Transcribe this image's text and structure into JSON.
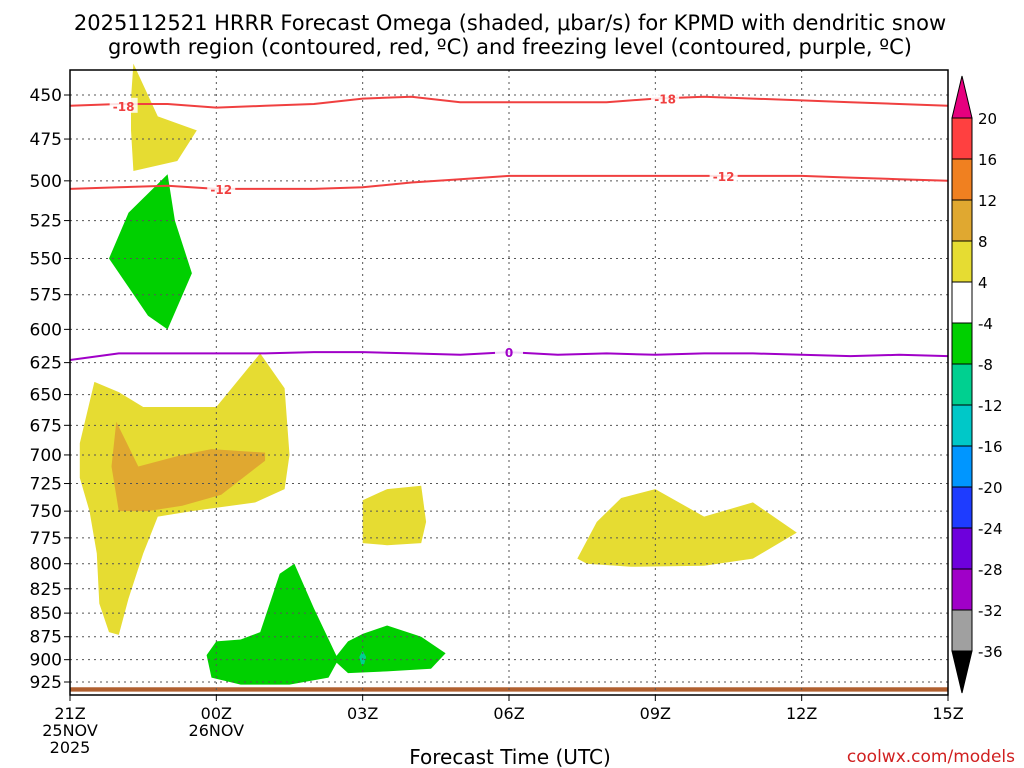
{
  "chart_data": {
    "type": "heatmap",
    "title_line1": "2025112521 HRRR Forecast Omega (shaded, μbar/s) for KPMD with dendritic snow",
    "title_line2": "growth region (contoured, red, ºC) and freezing level (contoured, purple, ºC)",
    "xlabel": "Forecast Time (UTC)",
    "credit": "coolwx.com/models",
    "x_range_hours": [
      0,
      18
    ],
    "x_ticks": [
      {
        "h": 0,
        "label": "21Z",
        "sub1": "25NOV",
        "sub2": "2025"
      },
      {
        "h": 3,
        "label": "00Z",
        "sub1": "26NOV",
        "sub2": ""
      },
      {
        "h": 6,
        "label": "03Z",
        "sub1": "",
        "sub2": ""
      },
      {
        "h": 9,
        "label": "06Z",
        "sub1": "",
        "sub2": ""
      },
      {
        "h": 12,
        "label": "09Z",
        "sub1": "",
        "sub2": ""
      },
      {
        "h": 15,
        "label": "12Z",
        "sub1": "",
        "sub2": ""
      },
      {
        "h": 18,
        "label": "15Z",
        "sub1": "",
        "sub2": ""
      }
    ],
    "y_ticks": [
      "450",
      "475",
      "500",
      "525",
      "550",
      "575",
      "600",
      "625",
      "650",
      "675",
      "700",
      "725",
      "750",
      "775",
      "800",
      "825",
      "850",
      "875",
      "900",
      "925"
    ],
    "y_range_hpa": [
      432,
      940
    ],
    "colorbar": {
      "labels": [
        "20",
        "16",
        "12",
        "8",
        "4",
        "-4",
        "-8",
        "-12",
        "-16",
        "-20",
        "-24",
        "-28",
        "-32",
        "-36"
      ],
      "bins": [
        {
          "lo": 16,
          "hi": 20,
          "color": "#ff4040"
        },
        {
          "lo": 12,
          "hi": 16,
          "color": "#f08020"
        },
        {
          "lo": 8,
          "hi": 12,
          "color": "#e0a830"
        },
        {
          "lo": 4,
          "hi": 8,
          "color": "#e6dc32"
        },
        {
          "lo": -4,
          "hi": 4,
          "color": "#ffffff"
        },
        {
          "lo": -8,
          "hi": -4,
          "color": "#00d000"
        },
        {
          "lo": -12,
          "hi": -8,
          "color": "#00d090"
        },
        {
          "lo": -16,
          "hi": -12,
          "color": "#00c8c8"
        },
        {
          "lo": -20,
          "hi": -16,
          "color": "#0096ff"
        },
        {
          "lo": -24,
          "hi": -20,
          "color": "#1e3cff"
        },
        {
          "lo": -28,
          "hi": -24,
          "color": "#6e00dc"
        },
        {
          "lo": -32,
          "hi": -28,
          "color": "#a000c8"
        },
        {
          "lo": -36,
          "hi": -32,
          "color": "#a0a0a0"
        }
      ],
      "top_arrow_color": "#e6007e",
      "bottom_arrow_color": "#000000"
    },
    "shaded_regions": [
      {
        "name": "yellow-region-upper",
        "color": "#e6dc32",
        "points": [
          [
            1.25,
            452
          ],
          [
            1.3,
            433
          ],
          [
            1.8,
            462
          ],
          [
            2.6,
            470
          ],
          [
            2.2,
            488
          ],
          [
            1.3,
            494
          ],
          [
            1.25,
            470
          ]
        ]
      },
      {
        "name": "green-region-upper",
        "color": "#00d000",
        "points": [
          [
            0.8,
            550
          ],
          [
            1.2,
            520
          ],
          [
            2.0,
            496
          ],
          [
            2.15,
            525
          ],
          [
            2.5,
            560
          ],
          [
            2.0,
            600
          ],
          [
            1.6,
            590
          ]
        ]
      },
      {
        "name": "yellow-region-lower-left",
        "color": "#e6dc32",
        "points": [
          [
            0.5,
            640
          ],
          [
            1.0,
            648
          ],
          [
            1.5,
            660
          ],
          [
            3.0,
            660
          ],
          [
            3.9,
            618
          ],
          [
            4.4,
            645
          ],
          [
            4.5,
            700
          ],
          [
            4.4,
            730
          ],
          [
            3.8,
            742
          ],
          [
            2.5,
            750
          ],
          [
            1.8,
            755
          ],
          [
            1.5,
            790
          ],
          [
            1.2,
            835
          ],
          [
            1.0,
            873
          ],
          [
            0.8,
            870
          ],
          [
            0.6,
            840
          ],
          [
            0.55,
            790
          ],
          [
            0.4,
            750
          ],
          [
            0.2,
            720
          ],
          [
            0.2,
            690
          ]
        ]
      },
      {
        "name": "orange-region",
        "color": "#e0a830",
        "points": [
          [
            0.95,
            672
          ],
          [
            1.4,
            710
          ],
          [
            2.3,
            700
          ],
          [
            2.9,
            695
          ],
          [
            4.0,
            698
          ],
          [
            4.0,
            705
          ],
          [
            3.1,
            735
          ],
          [
            2.3,
            745
          ],
          [
            1.6,
            750
          ],
          [
            1.0,
            750
          ],
          [
            0.85,
            710
          ]
        ]
      },
      {
        "name": "yellow-region-mid",
        "color": "#e6dc32",
        "points": [
          [
            6.0,
            740
          ],
          [
            6.5,
            730
          ],
          [
            7.2,
            727
          ],
          [
            7.3,
            760
          ],
          [
            7.2,
            780
          ],
          [
            6.5,
            782
          ],
          [
            6.0,
            780
          ]
        ]
      },
      {
        "name": "yellow-region-right",
        "color": "#e6dc32",
        "points": [
          [
            10.4,
            795
          ],
          [
            10.8,
            760
          ],
          [
            11.3,
            738
          ],
          [
            12.0,
            730
          ],
          [
            13.0,
            755
          ],
          [
            14.0,
            742
          ],
          [
            14.9,
            770
          ],
          [
            14.0,
            795
          ],
          [
            13.0,
            802
          ],
          [
            11.5,
            803
          ],
          [
            10.6,
            800
          ]
        ]
      },
      {
        "name": "green-region-lower-left",
        "color": "#00d000",
        "points": [
          [
            2.8,
            895
          ],
          [
            3.0,
            880
          ],
          [
            3.5,
            878
          ],
          [
            3.9,
            870
          ],
          [
            4.3,
            810
          ],
          [
            4.6,
            800
          ],
          [
            5.0,
            845
          ],
          [
            5.5,
            900
          ],
          [
            5.3,
            920
          ],
          [
            4.5,
            928
          ],
          [
            3.5,
            928
          ],
          [
            2.9,
            920
          ]
        ]
      },
      {
        "name": "green-region-lower-right",
        "color": "#00d000",
        "points": [
          [
            5.4,
            900
          ],
          [
            5.7,
            880
          ],
          [
            6.0,
            872
          ],
          [
            6.5,
            863
          ],
          [
            7.2,
            875
          ],
          [
            7.7,
            893
          ],
          [
            7.4,
            910
          ],
          [
            6.5,
            913
          ],
          [
            5.7,
            915
          ]
        ]
      },
      {
        "name": "teal-region",
        "color": "#00d090",
        "points": [
          [
            5.93,
            897
          ],
          [
            6.0,
            890
          ],
          [
            6.07,
            897
          ],
          [
            6.03,
            905
          ],
          [
            5.97,
            905
          ]
        ]
      }
    ],
    "ground_band": {
      "color": "#b06030",
      "top_hpa": 931,
      "bottom_hpa": 936
    },
    "contours": [
      {
        "name": "contour-minus18",
        "color": "#f04040",
        "label": "-18",
        "label_at": [
          [
            1.1,
            456
          ],
          [
            12.2,
            452
          ]
        ],
        "points": [
          [
            0,
            456
          ],
          [
            1,
            455
          ],
          [
            2,
            455
          ],
          [
            3,
            457
          ],
          [
            4,
            456
          ],
          [
            5,
            455
          ],
          [
            6,
            452
          ],
          [
            7,
            451
          ],
          [
            8,
            454
          ],
          [
            9,
            454
          ],
          [
            10,
            454
          ],
          [
            11,
            454
          ],
          [
            12,
            452
          ],
          [
            13,
            451
          ],
          [
            14,
            452
          ],
          [
            15,
            453
          ],
          [
            16,
            454
          ],
          [
            17,
            455
          ],
          [
            18,
            456
          ]
        ]
      },
      {
        "name": "contour-minus12",
        "color": "#f04040",
        "label": "-12",
        "label_at": [
          [
            3.1,
            505
          ],
          [
            13.4,
            497
          ]
        ],
        "points": [
          [
            0,
            505
          ],
          [
            1,
            504
          ],
          [
            2,
            503
          ],
          [
            3,
            505
          ],
          [
            4,
            505
          ],
          [
            5,
            505
          ],
          [
            6,
            504
          ],
          [
            7,
            501
          ],
          [
            8,
            499
          ],
          [
            9,
            497
          ],
          [
            10,
            497
          ],
          [
            11,
            497
          ],
          [
            12,
            497
          ],
          [
            13,
            497
          ],
          [
            14,
            497
          ],
          [
            15,
            497
          ],
          [
            16,
            498
          ],
          [
            17,
            499
          ],
          [
            18,
            500
          ]
        ]
      },
      {
        "name": "contour-zero",
        "color": "#a000c8",
        "label": "0",
        "label_at": [
          [
            9.0,
            617
          ]
        ],
        "points": [
          [
            0,
            623
          ],
          [
            1,
            618
          ],
          [
            2,
            618
          ],
          [
            3,
            618
          ],
          [
            4,
            618
          ],
          [
            5,
            617
          ],
          [
            6,
            617
          ],
          [
            7,
            618
          ],
          [
            8,
            619
          ],
          [
            9,
            617
          ],
          [
            10,
            619
          ],
          [
            11,
            618
          ],
          [
            12,
            619
          ],
          [
            13,
            618
          ],
          [
            14,
            618
          ],
          [
            15,
            619
          ],
          [
            16,
            620
          ],
          [
            17,
            619
          ],
          [
            18,
            620
          ]
        ]
      }
    ]
  }
}
